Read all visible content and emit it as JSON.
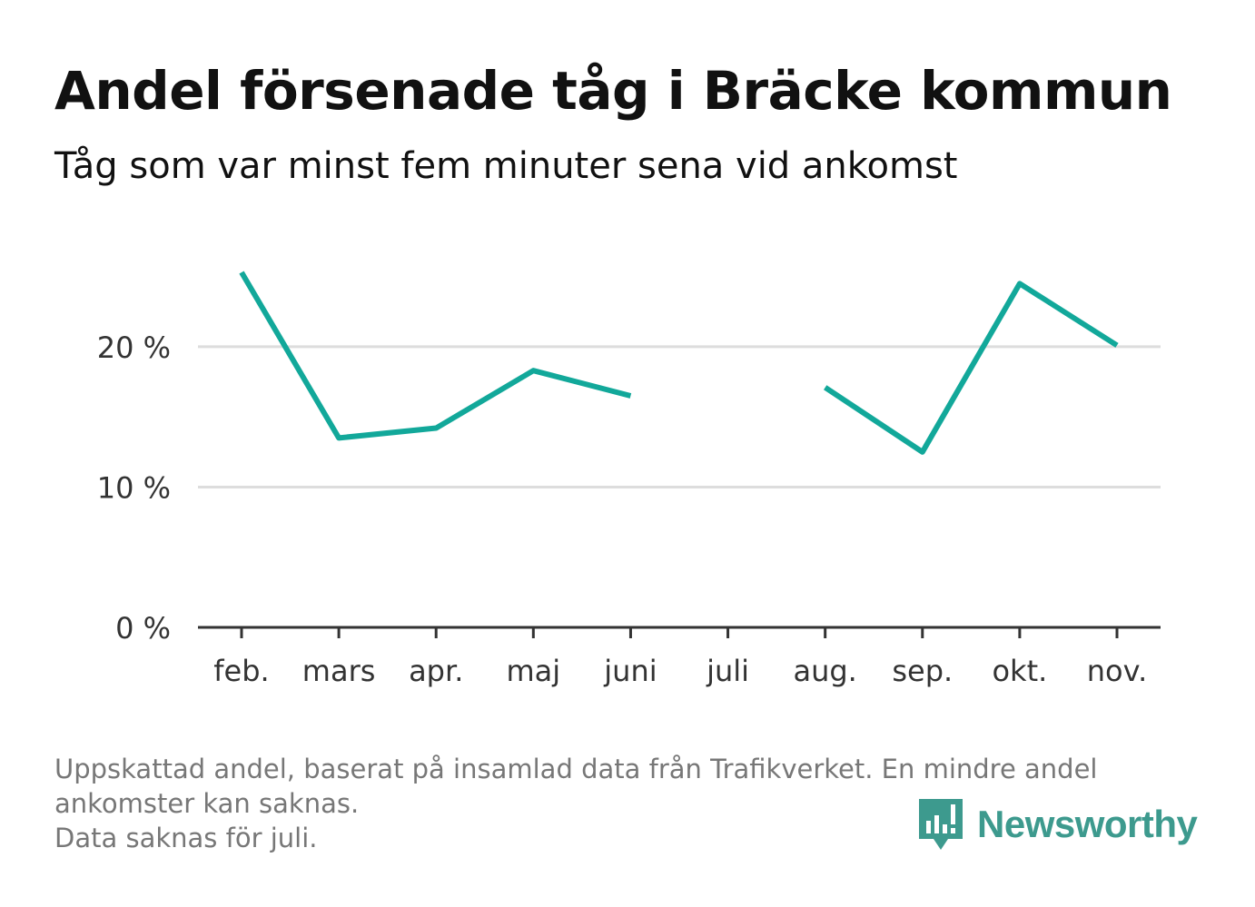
{
  "title": "Andel försenade tåg i Bräcke kommun",
  "subtitle": "Tåg som var minst fem minuter sena vid ankomst",
  "footnote": {
    "line1": "Uppskattad andel, baserat på insamlad data från Trafikverket. En mindre andel",
    "line2": "ankomster kan saknas.",
    "line3": "Data saknas för juli."
  },
  "logo": {
    "text": "Newsworthy",
    "icon": "bar-chart-speech-bubble-icon",
    "color": "#3d9a8e"
  },
  "colors": {
    "line": "#12a89a",
    "grid": "#dddddd",
    "axis": "#333333"
  },
  "chart_data": {
    "type": "line",
    "title": "Andel försenade tåg i Bräcke kommun",
    "subtitle": "Tåg som var minst fem minuter sena vid ankomst",
    "categories": [
      "feb.",
      "mars",
      "apr.",
      "maj",
      "juni",
      "juli",
      "aug.",
      "sep.",
      "okt.",
      "nov."
    ],
    "series": [
      {
        "values": [
          25.3,
          13.5,
          14.2,
          18.3,
          16.5,
          null,
          17.1,
          12.5,
          24.5,
          20.1
        ]
      }
    ],
    "yticks": [
      "0 %",
      "10 %",
      "20 %"
    ],
    "ytick_values": [
      0,
      10,
      20
    ],
    "ylim": [
      0,
      25.3
    ],
    "grid": true,
    "xlabel": "",
    "ylabel": ""
  }
}
